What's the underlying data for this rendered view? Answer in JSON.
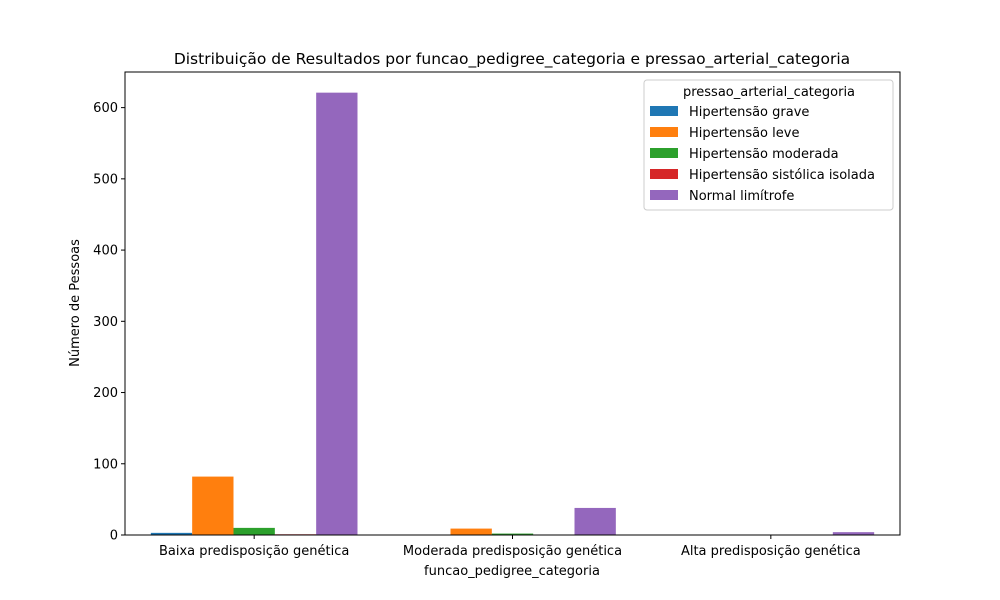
{
  "chart_data": {
    "type": "bar",
    "title": "Distribuição de Resultados por funcao_pedigree_categoria e pressao_arterial_categoria",
    "xlabel": "funcao_pedigree_categoria",
    "ylabel": "Número de Pessoas",
    "categories": [
      "Baixa predisposição genética",
      "Moderada predisposição genética",
      "Alta predisposição genética"
    ],
    "ylim": [
      0,
      650
    ],
    "yticks": [
      0,
      100,
      200,
      300,
      400,
      500,
      600
    ],
    "grid": false,
    "legend": {
      "title": "pressao_arterial_categoria",
      "placement": "top-right"
    },
    "series": [
      {
        "name": "Hipertensão grave",
        "color": "#1f77b4",
        "values": [
          3,
          0,
          0
        ]
      },
      {
        "name": "Hipertensão leve",
        "color": "#ff7f0e",
        "values": [
          82,
          9,
          0
        ]
      },
      {
        "name": "Hipertensão moderada",
        "color": "#2ca02c",
        "values": [
          10,
          2,
          0
        ]
      },
      {
        "name": "Hipertensão sistólica isolada",
        "color": "#d62728",
        "values": [
          1,
          0,
          0
        ]
      },
      {
        "name": "Normal limítrofe",
        "color": "#9467bd",
        "values": [
          621,
          38,
          4
        ]
      }
    ]
  }
}
